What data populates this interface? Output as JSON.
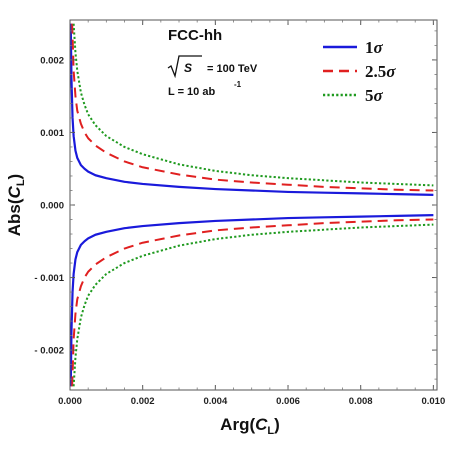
{
  "chart_data": {
    "type": "line",
    "title": "",
    "xlabel": "Arg(C_L)",
    "ylabel": "Abs(C_L)",
    "xlabel_parts": {
      "main": "Arg(",
      "var": "C",
      "sub": "L",
      "close": ")"
    },
    "ylabel_parts": {
      "main": "Abs(",
      "var": "C",
      "sub": "L",
      "close": ")"
    },
    "xlim": [
      0,
      0.0101
    ],
    "ylim": [
      -0.00255,
      0.00255
    ],
    "x_ticks": [
      0.0,
      0.002,
      0.004,
      0.006,
      0.008,
      0.01
    ],
    "x_tick_labels": [
      "0.000",
      "0.002",
      "0.004",
      "0.006",
      "0.008",
      "0.010"
    ],
    "y_ticks": [
      0.002,
      0.001,
      0.0,
      -0.001,
      -0.002
    ],
    "y_tick_labels": [
      "0.002",
      "0.001",
      "0.000",
      "- 0.001",
      "- 0.002"
    ],
    "grid": false,
    "legend_position": "top-right",
    "annotations": {
      "collider": "FCC-hh",
      "energy_symbol": "S",
      "energy_text": "= 100 TeV",
      "lumi_text": "L = 10 ab",
      "lumi_exp": "-1"
    },
    "series": [
      {
        "name": "1σ",
        "label_num": "1",
        "color": "#1a1adb",
        "style": "solid",
        "x": [
          2e-05,
          4e-05,
          7e-05,
          0.0001,
          0.00015,
          0.0002,
          0.0003,
          0.0004,
          0.0005,
          0.0007,
          0.001,
          0.0015,
          0.002,
          0.003,
          0.004,
          0.005,
          0.006,
          0.007,
          0.008,
          0.009,
          0.01
        ],
        "y_upper": [
          0.0025,
          0.00175,
          0.0012,
          0.00095,
          0.00075,
          0.00065,
          0.00055,
          0.0005,
          0.00046,
          0.00041,
          0.00037,
          0.00032,
          0.00029,
          0.00025,
          0.00022,
          0.0002,
          0.00018,
          0.00017,
          0.00016,
          0.00015,
          0.00014
        ]
      },
      {
        "name": "2.5σ",
        "label_num": "2.5",
        "color": "#e02020",
        "style": "dashed",
        "x": [
          6e-05,
          0.0001,
          0.00015,
          0.0002,
          0.0003,
          0.0004,
          0.0005,
          0.0007,
          0.001,
          0.0015,
          0.002,
          0.003,
          0.004,
          0.005,
          0.006,
          0.007,
          0.008,
          0.009,
          0.01
        ],
        "y_upper": [
          0.0025,
          0.00185,
          0.0015,
          0.0013,
          0.00112,
          0.001,
          0.00092,
          0.00082,
          0.00072,
          0.0006,
          0.00052,
          0.00042,
          0.00035,
          0.00031,
          0.00028,
          0.00025,
          0.00023,
          0.00021,
          0.0002
        ]
      },
      {
        "name": "5σ",
        "label_num": "5",
        "color": "#1f9a1f",
        "style": "dotted",
        "x": [
          0.0001,
          0.00015,
          0.0002,
          0.0003,
          0.0004,
          0.0005,
          0.0007,
          0.001,
          0.0015,
          0.002,
          0.003,
          0.004,
          0.005,
          0.006,
          0.007,
          0.008,
          0.009,
          0.01
        ],
        "y_upper": [
          0.0025,
          0.0021,
          0.00185,
          0.00155,
          0.00138,
          0.00125,
          0.0011,
          0.00095,
          0.0008,
          0.0007,
          0.00056,
          0.00047,
          0.00041,
          0.00037,
          0.00034,
          0.00031,
          0.00029,
          0.00027
        ]
      }
    ],
    "symmetric_about_zero": true
  }
}
